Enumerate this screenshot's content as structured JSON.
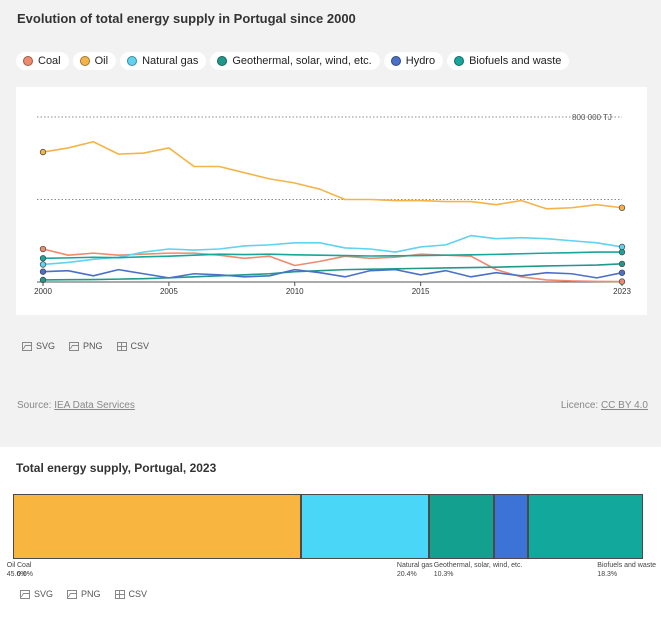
{
  "title": "Evolution of total energy supply in Portugal since 2000",
  "legend": [
    {
      "label": "Coal",
      "color": "#f08a6e"
    },
    {
      "label": "Oil",
      "color": "#f4b448"
    },
    {
      "label": "Natural gas",
      "color": "#5fd3ef"
    },
    {
      "label": "Geothermal, solar, wind, etc.",
      "color": "#1f9a8a"
    },
    {
      "label": "Hydro",
      "color": "#4a70c8"
    },
    {
      "label": "Biofuels and waste",
      "color": "#17a59c"
    }
  ],
  "chart_data": [
    {
      "type": "line",
      "title": "Evolution of total energy supply in Portugal since 2000",
      "x": [
        2000,
        2001,
        2002,
        2003,
        2004,
        2005,
        2006,
        2007,
        2008,
        2009,
        2010,
        2011,
        2012,
        2013,
        2014,
        2015,
        2016,
        2017,
        2018,
        2019,
        2020,
        2021,
        2022,
        2023
      ],
      "x_ticks": [
        "2000",
        "2005",
        "2010",
        "2015",
        "2023"
      ],
      "y_gridline_label": "800 000 TJ",
      "ylim": [
        0,
        800000
      ],
      "y_gridlines": [
        0,
        400000,
        800000
      ],
      "series": [
        {
          "name": "Coal",
          "color": "#f08a6e",
          "values": [
            160000,
            130000,
            140000,
            130000,
            135000,
            140000,
            140000,
            130000,
            115000,
            125000,
            80000,
            100000,
            125000,
            115000,
            120000,
            135000,
            130000,
            125000,
            60000,
            25000,
            10000,
            5000,
            3000,
            2000
          ]
        },
        {
          "name": "Oil",
          "color": "#f4b448",
          "values": [
            630000,
            650000,
            680000,
            620000,
            625000,
            650000,
            560000,
            560000,
            530000,
            500000,
            480000,
            450000,
            400000,
            400000,
            395000,
            395000,
            390000,
            390000,
            375000,
            395000,
            355000,
            360000,
            375000,
            360000
          ]
        },
        {
          "name": "Natural gas",
          "color": "#5fd3ef",
          "values": [
            85000,
            95000,
            110000,
            120000,
            145000,
            160000,
            155000,
            160000,
            175000,
            180000,
            190000,
            190000,
            165000,
            160000,
            145000,
            170000,
            180000,
            225000,
            210000,
            215000,
            210000,
            200000,
            190000,
            170000
          ]
        },
        {
          "name": "Geothermal, solar, wind, etc.",
          "color": "#1f9a8a",
          "values": [
            10000,
            11000,
            12000,
            14000,
            16000,
            20000,
            25000,
            30000,
            35000,
            40000,
            50000,
            55000,
            60000,
            62000,
            64000,
            66000,
            68000,
            70000,
            72000,
            75000,
            78000,
            80000,
            82000,
            88000
          ]
        },
        {
          "name": "Hydro",
          "color": "#4a70c8",
          "values": [
            50000,
            55000,
            30000,
            60000,
            40000,
            20000,
            40000,
            35000,
            25000,
            30000,
            60000,
            45000,
            25000,
            55000,
            60000,
            35000,
            55000,
            25000,
            45000,
            30000,
            45000,
            40000,
            20000,
            45000
          ]
        },
        {
          "name": "Biofuels and waste",
          "color": "#17a59c",
          "values": [
            115000,
            117000,
            120000,
            118000,
            122000,
            125000,
            130000,
            135000,
            133000,
            135000,
            132000,
            130000,
            128000,
            126000,
            127000,
            128000,
            130000,
            132000,
            134000,
            137000,
            140000,
            142000,
            145000,
            145000
          ]
        }
      ]
    },
    {
      "type": "bar",
      "title": "Total energy supply, Portugal, 2023",
      "stacked": true,
      "categories": [
        "Coal",
        "Oil",
        "Natural gas",
        "Geothermal, solar, wind, etc.",
        "Hydro",
        "Biofuels and waste"
      ],
      "values": [
        0.0,
        45.6,
        20.4,
        10.3,
        5.3,
        18.3
      ],
      "value_labels": [
        "0.0%",
        "45.6%",
        "20.4%",
        "10.3%",
        "",
        "18.3%"
      ],
      "colors": [
        "#f08a6e",
        "#f8b53f",
        "#4ad6f7",
        "#14a08f",
        "#3c73d6",
        "#12a89b"
      ]
    }
  ],
  "downloads1": [
    {
      "label": "SVG",
      "icon": "image-icon"
    },
    {
      "label": "PNG",
      "icon": "image-icon"
    },
    {
      "label": "CSV",
      "icon": "table-icon"
    }
  ],
  "downloads2": [
    {
      "label": "SVG",
      "icon": "image-icon"
    },
    {
      "label": "PNG",
      "icon": "image-icon"
    },
    {
      "label": "CSV",
      "icon": "table-icon"
    }
  ],
  "source": {
    "prefix": "Source: ",
    "link": "IEA Data Services"
  },
  "licence": {
    "prefix": "Licence: ",
    "link": "CC BY 4.0"
  },
  "title2": "Total energy supply, Portugal, 2023"
}
